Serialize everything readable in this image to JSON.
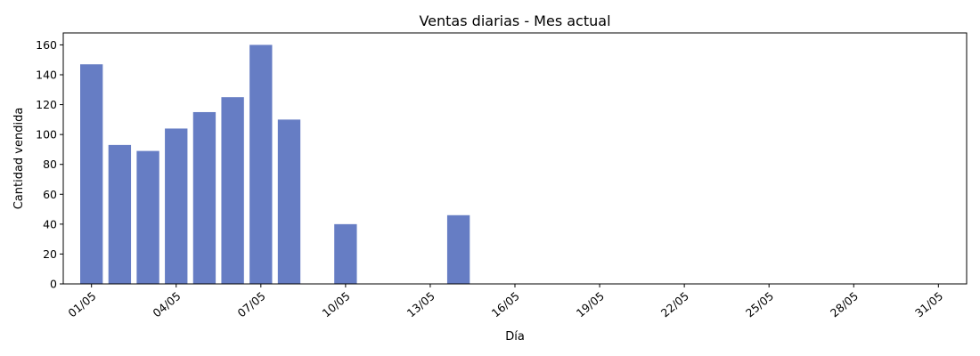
{
  "chart_data": {
    "type": "bar",
    "title": "Ventas diarias - Mes actual",
    "xlabel": "Día",
    "ylabel": "Cantidad vendida",
    "x": [
      "01/05",
      "02/05",
      "03/05",
      "04/05",
      "05/05",
      "06/05",
      "07/05",
      "08/05",
      "10/05",
      "14/05"
    ],
    "values": [
      147,
      93,
      89,
      104,
      115,
      125,
      160,
      110,
      40,
      46
    ],
    "x_ticks": [
      "01/05",
      "04/05",
      "07/05",
      "10/05",
      "13/05",
      "16/05",
      "19/05",
      "22/05",
      "25/05",
      "28/05",
      "31/05"
    ],
    "y_ticks": [
      0,
      20,
      40,
      60,
      80,
      100,
      120,
      140,
      160
    ],
    "xlim": [
      "30/04",
      "01/06"
    ],
    "ylim": [
      0,
      168
    ],
    "bar_color": "#667dc4",
    "grid": false,
    "legend": "none"
  }
}
